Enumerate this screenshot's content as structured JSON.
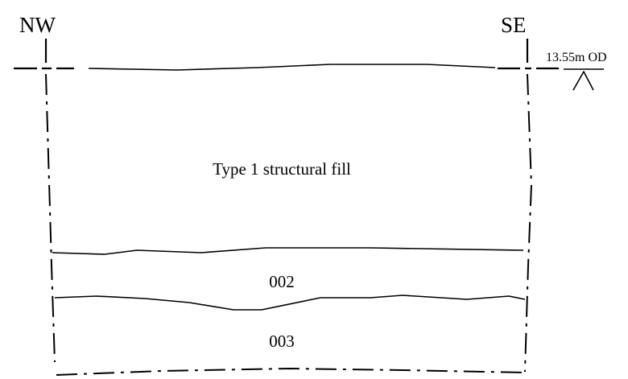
{
  "section": {
    "left_label": "NW",
    "right_label": "SE",
    "datum_label": "13.55m OD",
    "layers": [
      {
        "id": "fill",
        "label": "Type 1 structural fill"
      },
      {
        "id": "002",
        "label": "002"
      },
      {
        "id": "003",
        "label": "003"
      }
    ]
  }
}
